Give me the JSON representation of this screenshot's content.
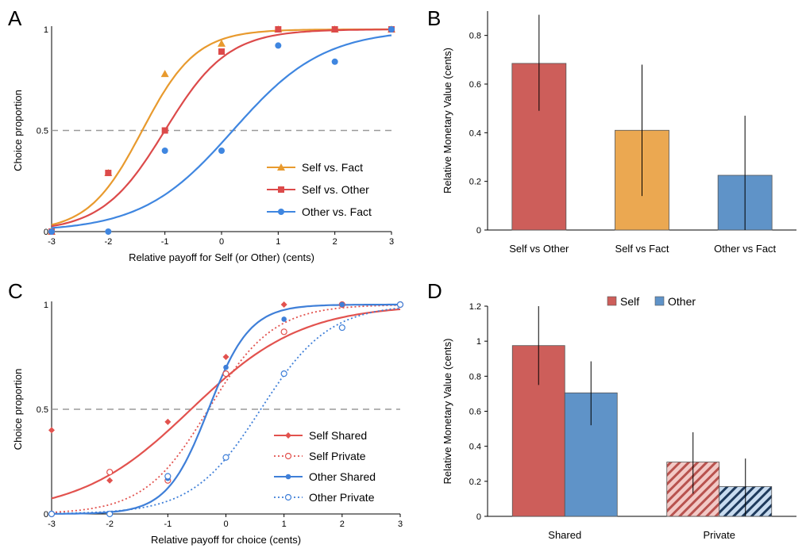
{
  "chart_data": [
    {
      "panel": "A",
      "type": "scatter",
      "xlabel": "Relative payoff for Self (or Other) (cents)",
      "ylabel": "Choice proportion",
      "xlim": [
        -3,
        3
      ],
      "ylim": [
        0,
        1
      ],
      "xticks": [
        "-3",
        "-2",
        "-1",
        "0",
        "1",
        "2",
        "3"
      ],
      "yticks": [
        "0",
        "0.5",
        "1"
      ],
      "reference_line": 0.5,
      "legend_position": "bottom-right",
      "series": [
        {
          "name": "Self vs. Fact",
          "color": "#E89A2E",
          "marker": "triangle",
          "x": [
            -3,
            -2,
            -1,
            0,
            1,
            2,
            3
          ],
          "y": [
            0.0,
            0.29,
            0.78,
            0.93,
            1.0,
            1.0,
            1.0
          ],
          "fit": {
            "midpoint": -1.4,
            "slope": 2.1
          }
        },
        {
          "name": "Self vs. Other",
          "color": "#DC4A4A",
          "marker": "square",
          "x": [
            -3,
            -2,
            -1,
            0,
            1,
            2,
            3
          ],
          "y": [
            0.0,
            0.29,
            0.5,
            0.89,
            1.0,
            1.0,
            1.0
          ],
          "fit": {
            "midpoint": -1.0,
            "slope": 1.8
          }
        },
        {
          "name": "Other vs. Fact",
          "color": "#3F86E0",
          "marker": "circle",
          "x": [
            -3,
            -2,
            -1,
            0,
            1,
            2,
            3
          ],
          "y": [
            0.0,
            0.0,
            0.4,
            0.4,
            0.92,
            0.84,
            1.0
          ],
          "fit": {
            "midpoint": 0.2,
            "slope": 1.25
          }
        }
      ]
    },
    {
      "panel": "B",
      "type": "bar",
      "ylabel": "Relative Monetary Value (cents)",
      "ylim": [
        0,
        0.9
      ],
      "yticks": [
        "0",
        "0.2",
        "0.4",
        "0.6",
        "0.8"
      ],
      "categories": [
        "Self vs Other",
        "Self vs Fact",
        "Other vs Fact"
      ],
      "values": [
        0.685,
        0.41,
        0.225
      ],
      "error_low": [
        0.49,
        0.14,
        0.0
      ],
      "error_high": [
        0.885,
        0.68,
        0.47
      ],
      "colors": [
        "#CD5E5A",
        "#EBA851",
        "#5F93C8"
      ]
    },
    {
      "panel": "C",
      "type": "scatter",
      "xlabel": "Relative payoff for choice (cents)",
      "ylabel": "Choice proportion",
      "xlim": [
        -3,
        3
      ],
      "ylim": [
        0,
        1
      ],
      "xticks": [
        "-3",
        "-2",
        "-1",
        "0",
        "1",
        "2",
        "3"
      ],
      "yticks": [
        "0",
        "0.5",
        "1"
      ],
      "reference_line": 0.5,
      "legend_position": "bottom-right",
      "series": [
        {
          "name": "Self Shared",
          "color": "#E2524E",
          "marker": "filled-diamond",
          "line": "solid",
          "x": [
            -3,
            -2,
            -1,
            0,
            1,
            2,
            3
          ],
          "y": [
            0.4,
            0.16,
            0.44,
            0.75,
            1.0,
            1.0,
            1.0
          ],
          "fit": {
            "midpoint": -0.6,
            "slope": 1.05
          }
        },
        {
          "name": "Self Private",
          "color": "#E2524E",
          "marker": "open-circle",
          "line": "dotted",
          "x": [
            -3,
            -2,
            -1,
            0,
            1,
            2,
            3
          ],
          "y": [
            0.0,
            0.2,
            0.16,
            0.67,
            0.87,
            1.0,
            1.0
          ],
          "fit": {
            "midpoint": -0.3,
            "slope": 1.8
          }
        },
        {
          "name": "Other Shared",
          "color": "#3F7FD8",
          "marker": "filled-circle",
          "line": "solid",
          "x": [
            -3,
            -2,
            -1,
            0,
            1,
            2,
            3
          ],
          "y": [
            0.0,
            0.0,
            0.17,
            0.7,
            0.93,
            1.0,
            1.0
          ],
          "fit": {
            "midpoint": -0.3,
            "slope": 2.8
          }
        },
        {
          "name": "Other Private",
          "color": "#3F7FD8",
          "marker": "open-circle",
          "line": "dotted",
          "x": [
            -3,
            -2,
            -1,
            0,
            1,
            2,
            3
          ],
          "y": [
            0.0,
            0.0,
            0.18,
            0.27,
            0.67,
            0.89,
            1.0
          ],
          "fit": {
            "midpoint": 0.6,
            "slope": 1.7
          }
        }
      ]
    },
    {
      "panel": "D",
      "type": "bar",
      "ylabel": "Relative Monetary Value (cents)",
      "ylim": [
        0,
        1.2
      ],
      "yticks": [
        "0",
        "0.2",
        "0.4",
        "0.6",
        "0.8",
        "1",
        "1.2"
      ],
      "categories": [
        "Shared",
        "Private"
      ],
      "legend_position": "top-center",
      "series": [
        {
          "name": "Self",
          "color": "#CD5E5A",
          "values": [
            0.975,
            0.31
          ],
          "error_low": [
            0.75,
            0.13
          ],
          "error_high": [
            1.2,
            0.48
          ],
          "hatched": [
            false,
            true
          ]
        },
        {
          "name": "Other",
          "color": "#5F93C8",
          "values": [
            0.705,
            0.17
          ],
          "error_low": [
            0.52,
            0.0
          ],
          "error_high": [
            0.885,
            0.33
          ],
          "hatched": [
            false,
            true
          ]
        }
      ]
    }
  ],
  "panel_labels": [
    "A",
    "B",
    "C",
    "D"
  ]
}
